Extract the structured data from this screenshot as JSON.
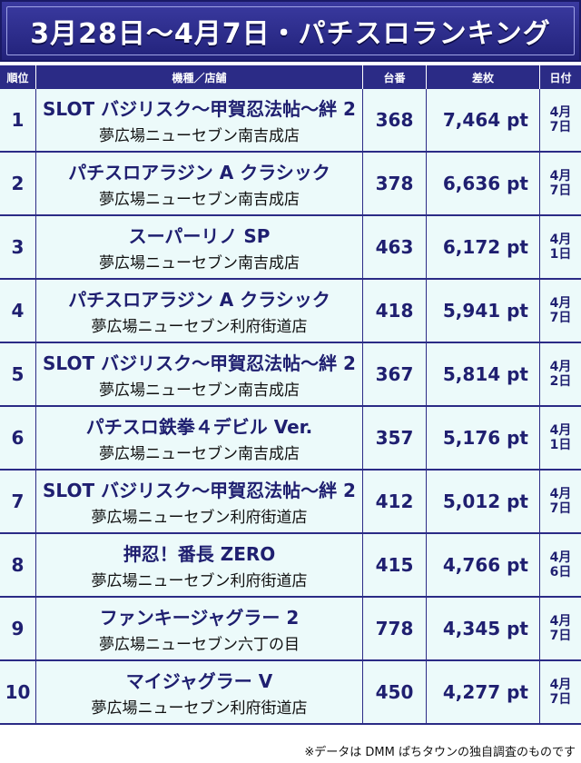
{
  "title": "3月28日〜4月7日・パチスロランキング",
  "headers": {
    "rank": "順位",
    "machine_store": "機種／店舗",
    "unit": "台番",
    "diff": "差枚",
    "date": "日付"
  },
  "rows": [
    {
      "rank": "1",
      "machine": "SLOT バジリスク〜甲賀忍法帖〜絆 2",
      "store": "夢広場ニューセブン南吉成店",
      "unit": "368",
      "diff": "7,464 pt",
      "month": "4月",
      "day": "7日"
    },
    {
      "rank": "2",
      "machine": "パチスロアラジン A クラシック",
      "store": "夢広場ニューセブン南吉成店",
      "unit": "378",
      "diff": "6,636 pt",
      "month": "4月",
      "day": "7日"
    },
    {
      "rank": "3",
      "machine": "スーパーリノ SP",
      "store": "夢広場ニューセブン南吉成店",
      "unit": "463",
      "diff": "6,172 pt",
      "month": "4月",
      "day": "1日"
    },
    {
      "rank": "4",
      "machine": "パチスロアラジン A クラシック",
      "store": "夢広場ニューセブン利府街道店",
      "unit": "418",
      "diff": "5,941 pt",
      "month": "4月",
      "day": "7日"
    },
    {
      "rank": "5",
      "machine": "SLOT バジリスク〜甲賀忍法帖〜絆 2",
      "store": "夢広場ニューセブン南吉成店",
      "unit": "367",
      "diff": "5,814 pt",
      "month": "4月",
      "day": "2日"
    },
    {
      "rank": "6",
      "machine": "パチスロ鉄拳４デビル Ver.",
      "store": "夢広場ニューセブン南吉成店",
      "unit": "357",
      "diff": "5,176 pt",
      "month": "4月",
      "day": "1日"
    },
    {
      "rank": "7",
      "machine": "SLOT バジリスク〜甲賀忍法帖〜絆 2",
      "store": "夢広場ニューセブン利府街道店",
      "unit": "412",
      "diff": "5,012 pt",
      "month": "4月",
      "day": "7日"
    },
    {
      "rank": "8",
      "machine": "押忍！番長 ZERO",
      "store": "夢広場ニューセブン利府街道店",
      "unit": "415",
      "diff": "4,766 pt",
      "month": "4月",
      "day": "6日"
    },
    {
      "rank": "9",
      "machine": "ファンキージャグラー 2",
      "store": "夢広場ニューセブン六丁の目",
      "unit": "778",
      "diff": "4,345 pt",
      "month": "4月",
      "day": "7日"
    },
    {
      "rank": "10",
      "machine": "マイジャグラー V",
      "store": "夢広場ニューセブン利府街道店",
      "unit": "450",
      "diff": "4,277 pt",
      "month": "4月",
      "day": "7日"
    }
  ],
  "footnote": "※データは DMM ぱちタウンの独自調査のものです",
  "colors": {
    "navy": "#2b2b86",
    "row_bg": "#ecfafa",
    "text_navy": "#1f1f70"
  }
}
